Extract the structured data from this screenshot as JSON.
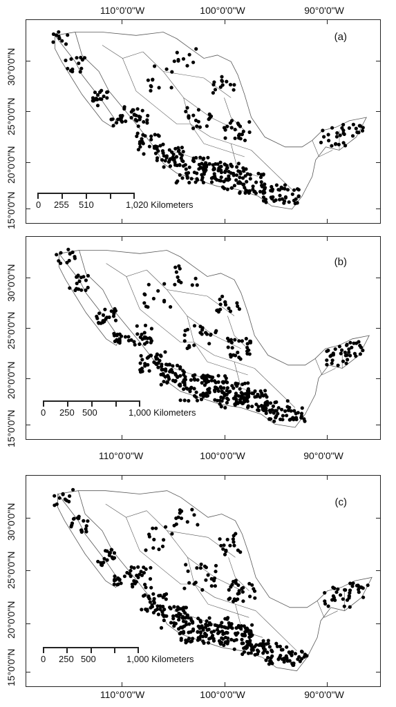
{
  "lon_labels": [
    "110°0'0\"W",
    "100°0'0\"W",
    "90°0'0\"W"
  ],
  "lat_labels": [
    "15°0'0\"N",
    "20°0'0\"N",
    "25°0'0\"N",
    "30°0'0\"N"
  ],
  "panels": [
    {
      "label": "(a)",
      "scale_labels": [
        "0",
        "255",
        "510",
        "1,020 Kilometers"
      ]
    },
    {
      "label": "(b)",
      "scale_labels": [
        "0",
        "250",
        "500",
        "1,000 Kilometers"
      ]
    },
    {
      "label": "(c)",
      "scale_labels": [
        "0",
        "250",
        "500",
        "1,000 Kilometers"
      ]
    }
  ],
  "colors": {
    "points": "#000000",
    "borders": "#555555",
    "frame": "#222222"
  }
}
